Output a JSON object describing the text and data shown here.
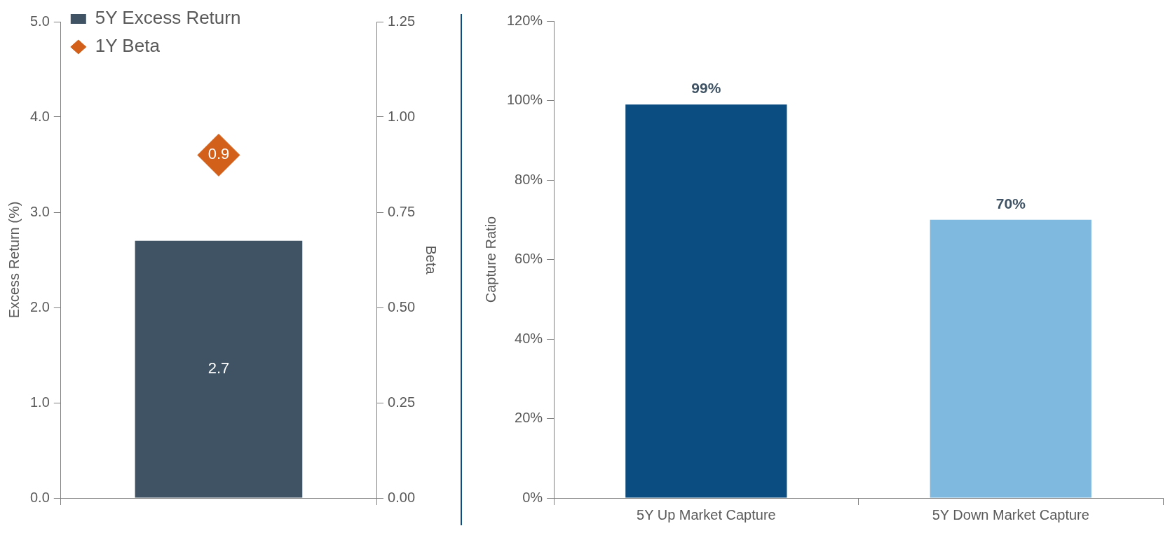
{
  "chart_data": [
    {
      "type": "bar",
      "categories": [
        null
      ],
      "ylabel": "Excess Return (%)",
      "y2label": "Beta",
      "ylim": [
        0,
        5
      ],
      "yticks": [
        {
          "value": 0,
          "label": "0.0"
        },
        {
          "value": 1,
          "label": "1.0"
        },
        {
          "value": 2,
          "label": "2.0"
        },
        {
          "value": 3,
          "label": "3.0"
        },
        {
          "value": 4,
          "label": "4.0"
        },
        {
          "value": 5,
          "label": "5.0"
        }
      ],
      "y2lim": [
        0,
        1.25
      ],
      "y2ticks": [
        {
          "value": 0,
          "label": "0.00"
        },
        {
          "value": 0.25,
          "label": "0.25"
        },
        {
          "value": 0.5,
          "label": "0.50"
        },
        {
          "value": 0.75,
          "label": "0.75"
        },
        {
          "value": 1,
          "label": "1.00"
        },
        {
          "value": 1.25,
          "label": "1.25"
        }
      ],
      "grid": false,
      "legend": "top left",
      "marker": "diamond",
      "data_labels": true,
      "series": [
        {
          "name": "5Y Excess Return",
          "color": "#3f5364",
          "values": [
            2.7
          ]
        },
        {
          "name": "1Y Beta",
          "type": "scatter",
          "axis": "y2",
          "color": "#d2601a",
          "values": [
            0.9
          ]
        }
      ]
    },
    {
      "type": "bar",
      "categories": [
        "5Y Up Market Capture",
        "5Y Down Market Capture"
      ],
      "ylabel": "Capture Ratio",
      "ylim": [
        0,
        120
      ],
      "yticks": [
        {
          "value": 0,
          "label": "0%"
        },
        {
          "value": 20,
          "label": "20%"
        },
        {
          "value": 40,
          "label": "40%"
        },
        {
          "value": 60,
          "label": "60%"
        },
        {
          "value": 80,
          "label": "80%"
        },
        {
          "value": 100,
          "label": "100%"
        },
        {
          "value": 120,
          "label": "120%"
        }
      ],
      "grid": false,
      "values": [
        99,
        70
      ],
      "colors": [
        "#0b4d80",
        "#7fb9e0"
      ],
      "value_labels": [
        "99%",
        "70%"
      ]
    }
  ]
}
